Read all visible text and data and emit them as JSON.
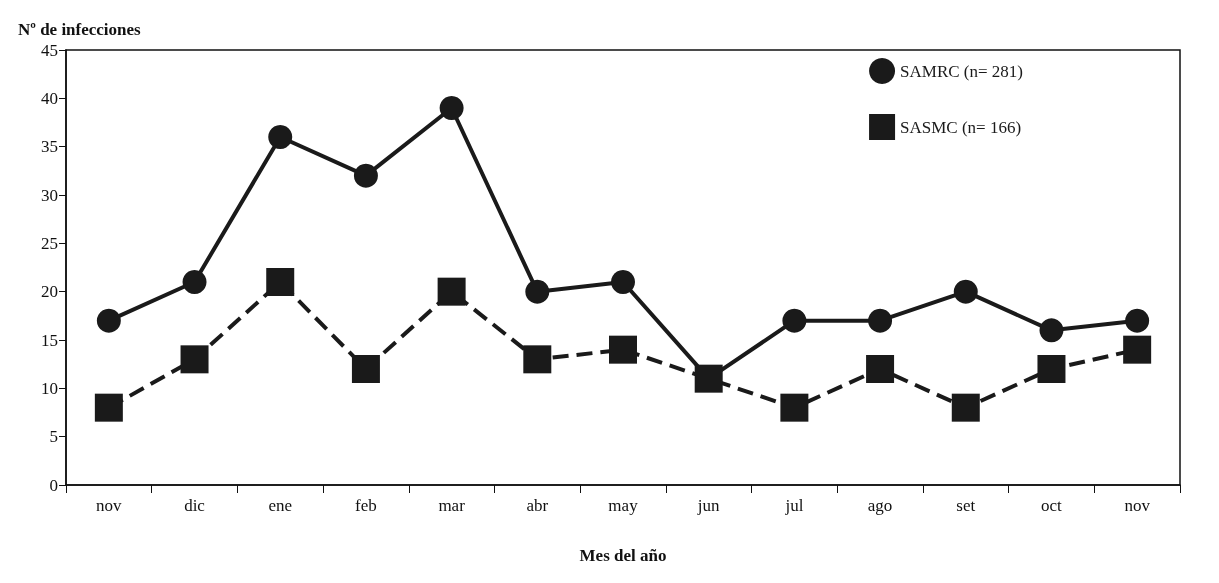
{
  "chart_data": {
    "type": "line",
    "xlabel": "Mes del año",
    "ylabel": "Nº de infecciones",
    "categories": [
      "nov",
      "dic",
      "ene",
      "feb",
      "mar",
      "abr",
      "may",
      "jun",
      "jul",
      "ago",
      "set",
      "oct",
      "nov"
    ],
    "series": [
      {
        "name": "SAMRC (n= 281)",
        "color": "#1a1a1a",
        "marker": "circle",
        "line_style": "solid",
        "values": [
          17,
          21,
          36,
          32,
          39,
          20,
          21,
          11,
          17,
          17,
          20,
          16,
          17
        ]
      },
      {
        "name": "SASMC (n= 166)",
        "color": "#1a1a1a",
        "marker": "square",
        "line_style": "dashed",
        "values": [
          8,
          13,
          21,
          12,
          20,
          13,
          14,
          11,
          8,
          12,
          8,
          12,
          14
        ]
      }
    ],
    "ylim": [
      0,
      45
    ],
    "yticks": [
      0,
      5,
      10,
      15,
      20,
      25,
      30,
      35,
      40,
      45
    ],
    "grid": false,
    "legend": "top right"
  }
}
